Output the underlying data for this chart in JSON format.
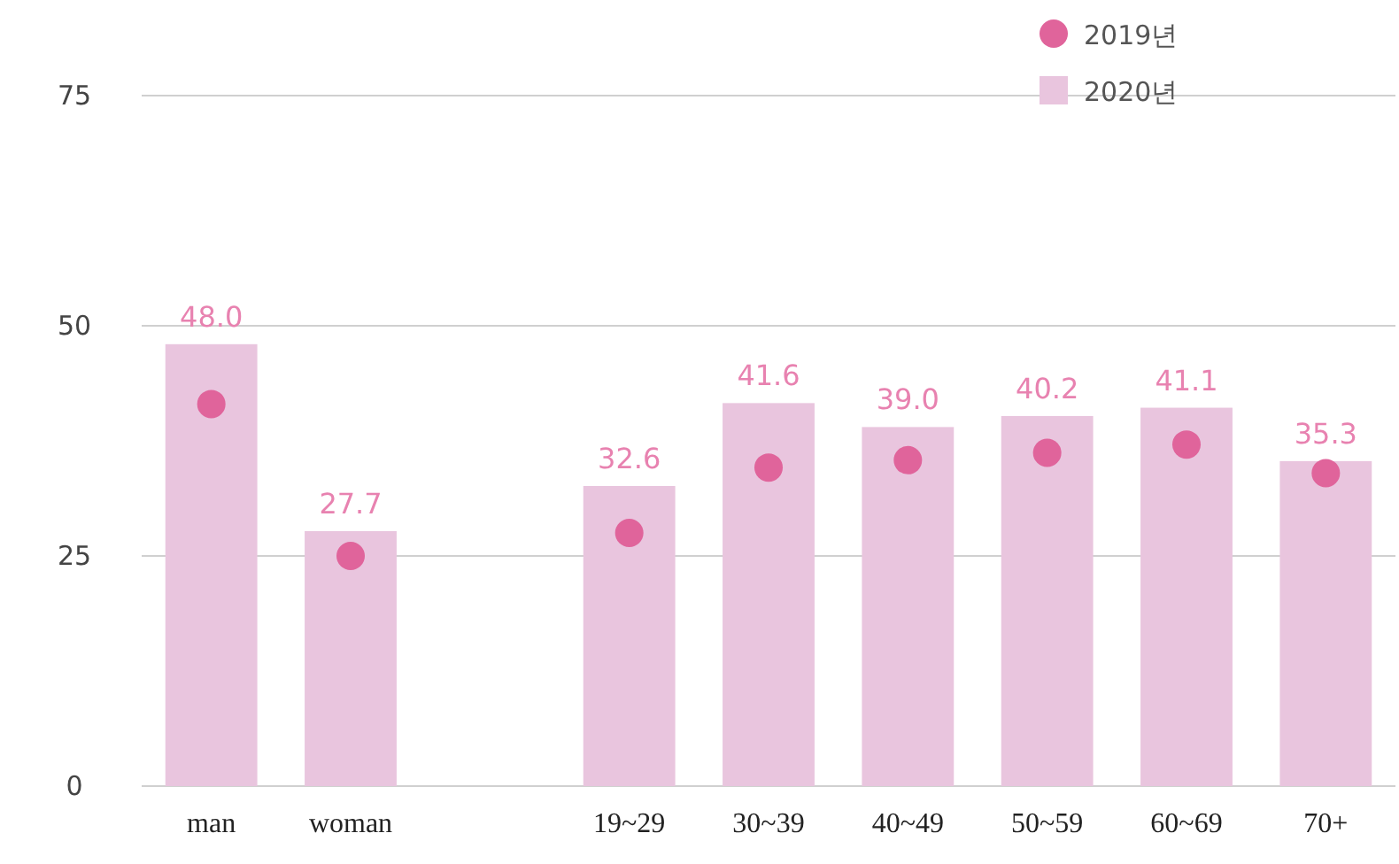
{
  "chart_data": {
    "type": "bar",
    "categories": [
      "man",
      "woman",
      null,
      "19~29",
      "30~39",
      "40~49",
      "50~59",
      "60~69",
      "70+"
    ],
    "series": [
      {
        "name": "2019년",
        "type": "scatter",
        "marker": "circle",
        "color": "#e0649b",
        "values": [
          41.5,
          25.0,
          null,
          27.5,
          34.6,
          35.4,
          36.2,
          37.1,
          34.0
        ]
      },
      {
        "name": "2020년",
        "color": "#e9c5de",
        "values": [
          48.0,
          27.7,
          null,
          32.6,
          41.6,
          39.0,
          40.2,
          41.1,
          35.3
        ],
        "value_labels": [
          "48.0",
          "27.7",
          null,
          "32.6",
          "41.6",
          "39.0",
          "40.2",
          "41.1",
          "35.3"
        ]
      }
    ],
    "ylim": [
      0,
      75
    ],
    "yticks": [
      0,
      25,
      50,
      75
    ],
    "grid": "y",
    "legend": "top right"
  }
}
